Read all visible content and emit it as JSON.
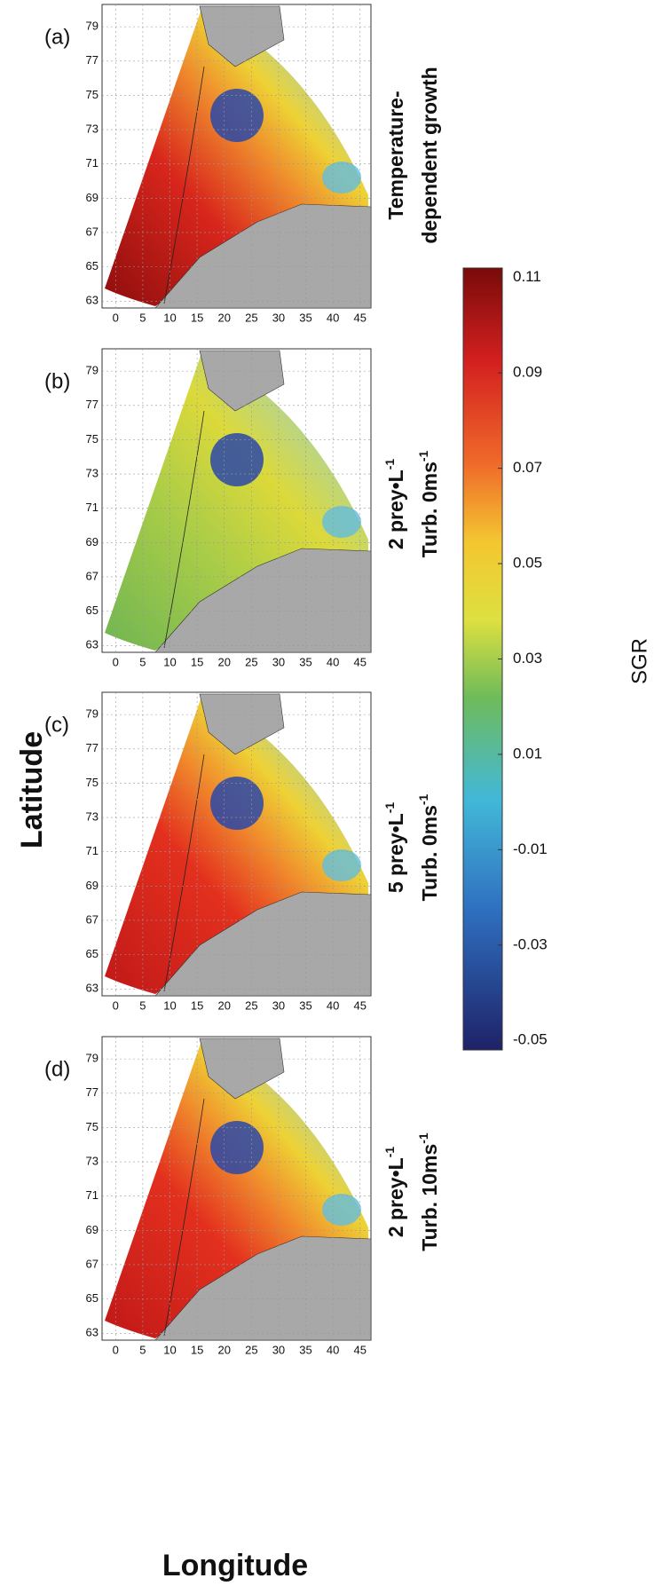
{
  "figure": {
    "y_label": "Latitude",
    "x_label": "Longitude",
    "xticks": [
      0,
      5,
      10,
      15,
      20,
      25,
      30,
      35,
      40,
      45
    ],
    "yticks": [
      63,
      65,
      67,
      69,
      71,
      73,
      75,
      77,
      79
    ],
    "xlim": [
      -2.5,
      47
    ],
    "ylim": [
      62.6,
      80.3
    ],
    "panels": [
      {
        "label": "(a)",
        "title_lines": [
          {
            "text": "Temperature-"
          },
          {
            "text": "dependent growth"
          }
        ]
      },
      {
        "label": "(b)",
        "title_lines": [
          {
            "text": "2 prey•L",
            "sup": "-1"
          },
          {
            "text": "Turb. 0ms",
            "sup": "-1"
          }
        ]
      },
      {
        "label": "(c)",
        "title_lines": [
          {
            "text": "5 prey•L",
            "sup": "-1"
          },
          {
            "text": "Turb. 0ms",
            "sup": "-1"
          }
        ]
      },
      {
        "label": "(d)",
        "title_lines": [
          {
            "text": "2 prey•L",
            "sup": "-1"
          },
          {
            "text": "Turb. 10ms",
            "sup": "-1"
          }
        ]
      }
    ],
    "colorbar": {
      "label": "SGR",
      "lim": [
        -0.052,
        0.112
      ],
      "ticks": [
        0.11,
        0.09,
        0.07,
        0.05,
        0.03,
        0.01,
        -0.01,
        -0.03,
        -0.05
      ]
    }
  }
}
